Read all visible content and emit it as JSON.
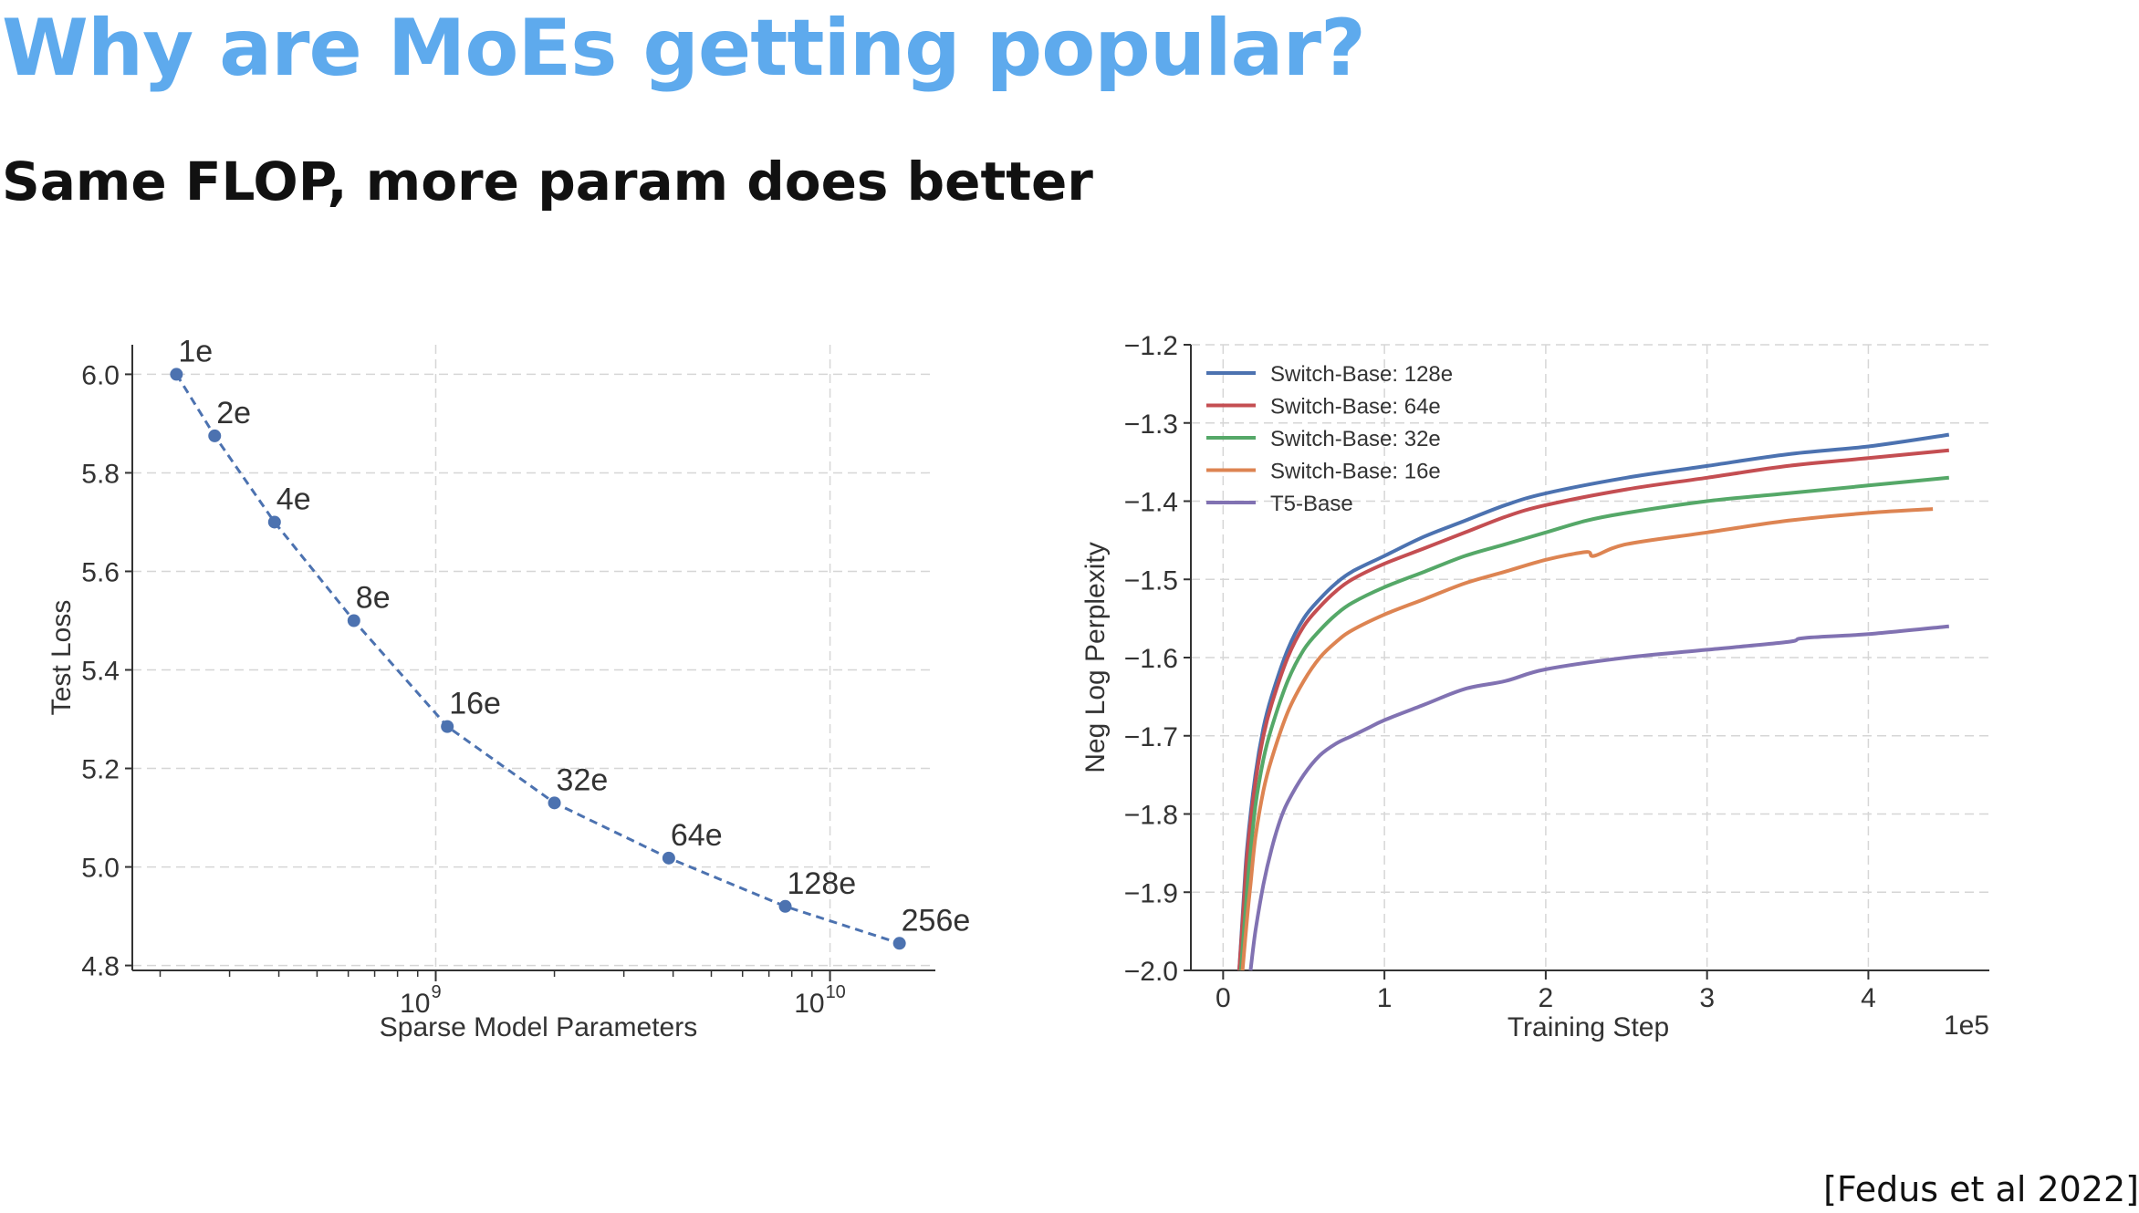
{
  "slide": {
    "title": "Why are MoEs getting popular?",
    "subtitle": "Same FLOP, more param does better",
    "citation": "[Fedus et al 2022]",
    "title_color": "#5eaaed"
  },
  "chart_data": [
    {
      "type": "scatter",
      "xlabel": "Sparse Model Parameters",
      "ylabel": "Test Loss",
      "xscale": "log",
      "xlim": [
        170000000,
        18500000000
      ],
      "ylim": [
        4.79,
        6.06
      ],
      "x_ticks": [
        {
          "value": 1000000000,
          "base": "10",
          "exp": "9"
        },
        {
          "value": 10000000000,
          "base": "10",
          "exp": "10"
        }
      ],
      "y_ticks": [
        {
          "value": 4.8,
          "label": "4.8"
        },
        {
          "value": 5.0,
          "label": "5.0"
        },
        {
          "value": 5.2,
          "label": "5.2"
        },
        {
          "value": 5.4,
          "label": "5.4"
        },
        {
          "value": 5.6,
          "label": "5.6"
        },
        {
          "value": 5.8,
          "label": "5.8"
        },
        {
          "value": 6.0,
          "label": "6.0"
        }
      ],
      "grid": true,
      "line_style": "dashed",
      "color": "#4c72b0",
      "points": [
        {
          "label": "1e",
          "x": 220000000,
          "y": 6.0
        },
        {
          "label": "2e",
          "x": 275000000,
          "y": 5.875
        },
        {
          "label": "4e",
          "x": 390000000,
          "y": 5.7
        },
        {
          "label": "8e",
          "x": 620000000,
          "y": 5.5
        },
        {
          "label": "16e",
          "x": 1070000000,
          "y": 5.285
        },
        {
          "label": "32e",
          "x": 2000000000,
          "y": 5.13
        },
        {
          "label": "64e",
          "x": 3900000000,
          "y": 5.018
        },
        {
          "label": "128e",
          "x": 7700000000,
          "y": 4.92
        },
        {
          "label": "256e",
          "x": 15000000000,
          "y": 4.845
        }
      ]
    },
    {
      "type": "line",
      "xlabel": "Training Step",
      "ylabel": "Neg Log Perplexity",
      "x_multiplier_label": "1e5",
      "xlim": [
        -0.2,
        4.75
      ],
      "ylim": [
        -2.0,
        -1.2
      ],
      "x_ticks": [
        0,
        1,
        2,
        3,
        4
      ],
      "y_ticks": [
        {
          "value": -1.2,
          "label": "−1.2"
        },
        {
          "value": -1.3,
          "label": "−1.3"
        },
        {
          "value": -1.4,
          "label": "−1.4"
        },
        {
          "value": -1.5,
          "label": "−1.5"
        },
        {
          "value": -1.6,
          "label": "−1.6"
        },
        {
          "value": -1.7,
          "label": "−1.7"
        },
        {
          "value": -1.8,
          "label": "−1.8"
        },
        {
          "value": -1.9,
          "label": "−1.9"
        },
        {
          "value": -2.0,
          "label": "−2.0"
        }
      ],
      "grid": true,
      "legend_position": "top-left",
      "series": [
        {
          "name": "Switch-Base: 128e",
          "color": "#4c72b0",
          "x": [
            0.1,
            0.13,
            0.15,
            0.2,
            0.25,
            0.3,
            0.4,
            0.5,
            0.6,
            0.7,
            0.8,
            1.0,
            1.25,
            1.5,
            1.75,
            2.0,
            2.5,
            3.0,
            3.5,
            4.0,
            4.5
          ],
          "y": [
            -2.0,
            -1.9,
            -1.84,
            -1.75,
            -1.69,
            -1.65,
            -1.59,
            -1.55,
            -1.525,
            -1.505,
            -1.49,
            -1.47,
            -1.445,
            -1.425,
            -1.405,
            -1.39,
            -1.37,
            -1.355,
            -1.34,
            -1.33,
            -1.315
          ]
        },
        {
          "name": "Switch-Base: 64e",
          "color": "#c44e52",
          "x": [
            0.1,
            0.13,
            0.15,
            0.2,
            0.25,
            0.3,
            0.4,
            0.5,
            0.6,
            0.7,
            0.8,
            1.0,
            1.25,
            1.5,
            1.75,
            2.0,
            2.5,
            3.0,
            3.5,
            4.0,
            4.5
          ],
          "y": [
            -2.0,
            -1.91,
            -1.85,
            -1.76,
            -1.7,
            -1.66,
            -1.6,
            -1.56,
            -1.535,
            -1.515,
            -1.5,
            -1.48,
            -1.46,
            -1.44,
            -1.42,
            -1.405,
            -1.385,
            -1.37,
            -1.355,
            -1.345,
            -1.335
          ]
        },
        {
          "name": "Switch-Base: 32e",
          "color": "#55a868",
          "x": [
            0.11,
            0.14,
            0.16,
            0.2,
            0.25,
            0.3,
            0.4,
            0.5,
            0.6,
            0.7,
            0.8,
            1.0,
            1.25,
            1.5,
            1.75,
            2.0,
            2.25,
            2.5,
            3.0,
            3.5,
            4.0,
            4.5
          ],
          "y": [
            -2.0,
            -1.92,
            -1.87,
            -1.79,
            -1.73,
            -1.69,
            -1.63,
            -1.59,
            -1.565,
            -1.545,
            -1.53,
            -1.51,
            -1.49,
            -1.47,
            -1.455,
            -1.44,
            -1.425,
            -1.415,
            -1.4,
            -1.39,
            -1.38,
            -1.37
          ]
        },
        {
          "name": "Switch-Base: 16e",
          "color": "#dd8452",
          "x": [
            0.12,
            0.15,
            0.17,
            0.2,
            0.25,
            0.3,
            0.4,
            0.5,
            0.6,
            0.7,
            0.8,
            1.0,
            1.25,
            1.5,
            1.75,
            2.0,
            2.25,
            2.3,
            2.5,
            3.0,
            3.5,
            4.0,
            4.4
          ],
          "y": [
            -2.0,
            -1.93,
            -1.89,
            -1.83,
            -1.77,
            -1.73,
            -1.67,
            -1.63,
            -1.6,
            -1.58,
            -1.565,
            -1.545,
            -1.525,
            -1.505,
            -1.49,
            -1.475,
            -1.465,
            -1.47,
            -1.455,
            -1.44,
            -1.425,
            -1.415,
            -1.41
          ]
        },
        {
          "name": "T5-Base",
          "color": "#8172b2",
          "x": [
            0.17,
            0.2,
            0.25,
            0.3,
            0.35,
            0.4,
            0.5,
            0.6,
            0.7,
            0.8,
            0.9,
            1.0,
            1.25,
            1.5,
            1.75,
            2.0,
            2.5,
            3.0,
            3.5,
            3.6,
            4.0,
            4.5
          ],
          "y": [
            -2.0,
            -1.95,
            -1.89,
            -1.845,
            -1.81,
            -1.785,
            -1.75,
            -1.725,
            -1.71,
            -1.7,
            -1.69,
            -1.68,
            -1.66,
            -1.64,
            -1.63,
            -1.615,
            -1.6,
            -1.59,
            -1.58,
            -1.575,
            -1.57,
            -1.56
          ]
        }
      ]
    }
  ]
}
